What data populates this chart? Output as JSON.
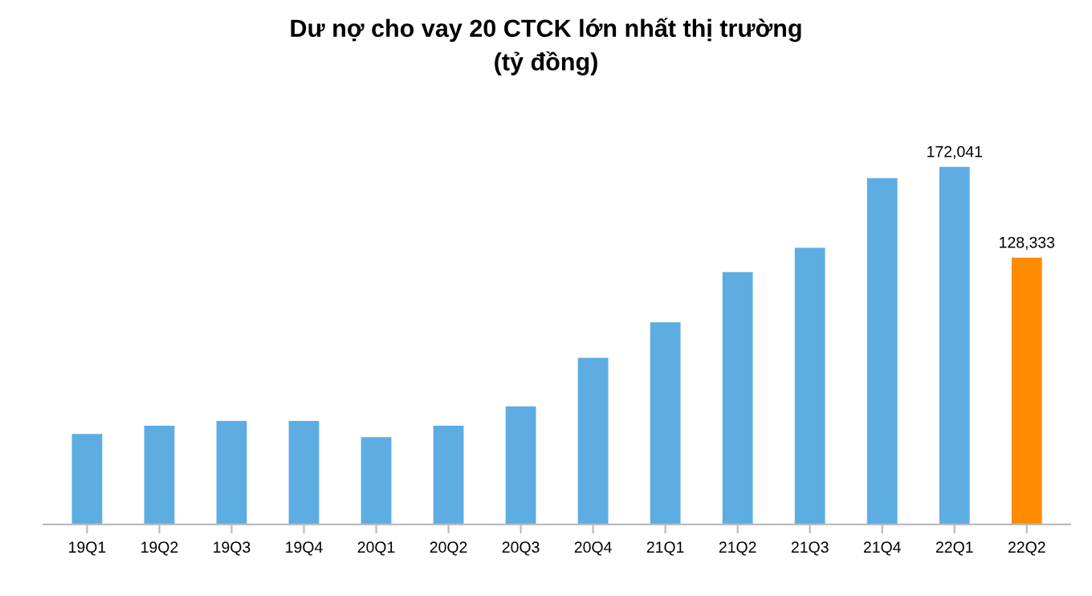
{
  "chart_data": {
    "type": "bar",
    "title": "Dư nợ cho vay 20 CTCK lớn nhất thị trường\n(tỷ đồng)",
    "categories": [
      "19Q1",
      "19Q2",
      "19Q3",
      "19Q4",
      "20Q1",
      "20Q2",
      "20Q3",
      "20Q4",
      "21Q1",
      "21Q2",
      "21Q3",
      "21Q4",
      "22Q1",
      "22Q2"
    ],
    "values": [
      43600,
      47500,
      49800,
      49800,
      42000,
      47500,
      56800,
      80200,
      97300,
      121400,
      133100,
      166600,
      172041,
      128333
    ],
    "value_labels": [
      null,
      null,
      null,
      null,
      null,
      null,
      null,
      null,
      null,
      null,
      null,
      null,
      "172,041",
      "128,333"
    ],
    "colors": [
      "#5dade2",
      "#5dade2",
      "#5dade2",
      "#5dade2",
      "#5dade2",
      "#5dade2",
      "#5dade2",
      "#5dade2",
      "#5dade2",
      "#5dade2",
      "#5dade2",
      "#5dade2",
      "#5dade2",
      "#ff8c00"
    ],
    "grid": false,
    "legend": false,
    "tick_labels": "x"
  }
}
